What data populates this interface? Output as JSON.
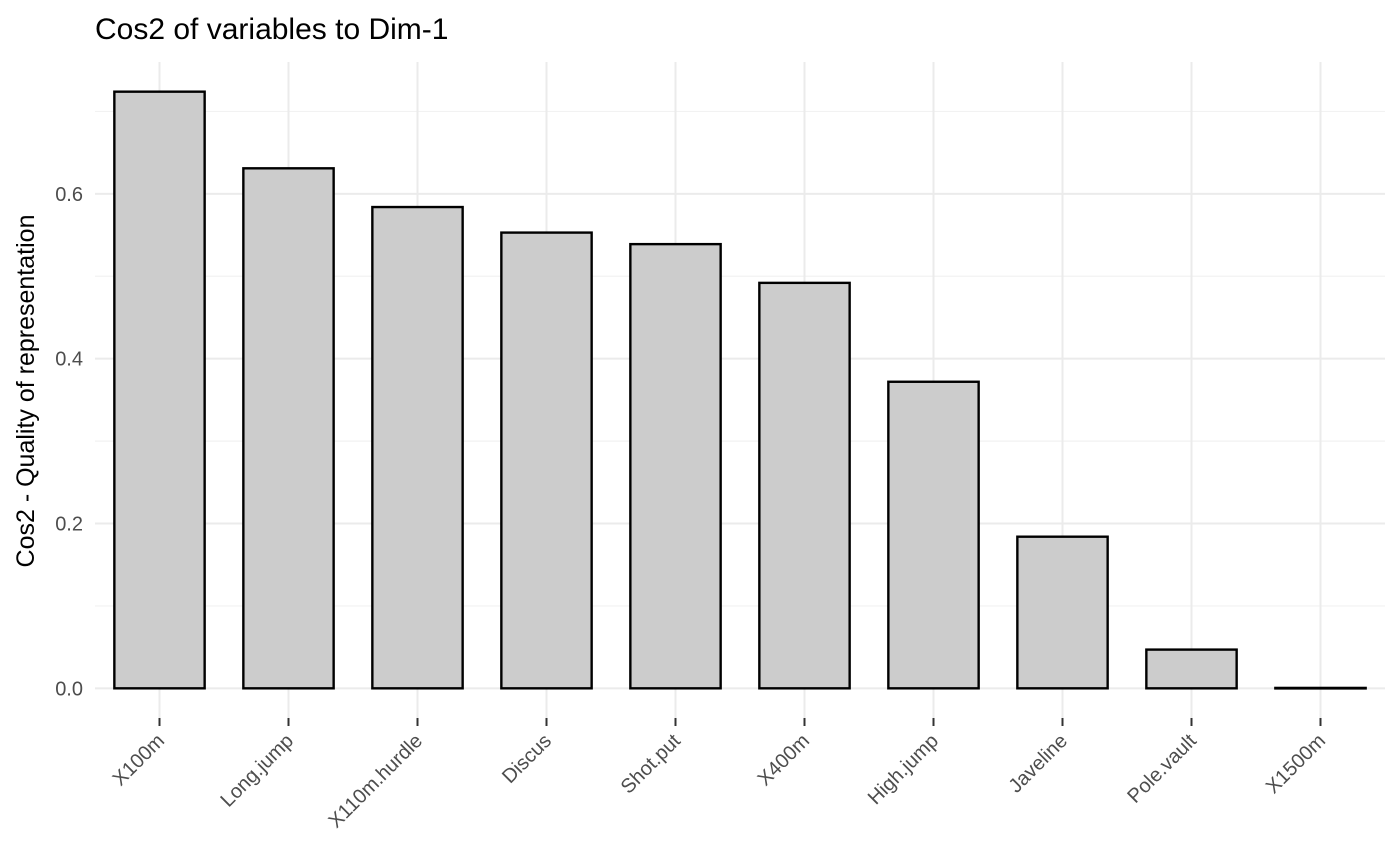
{
  "chart_data": {
    "type": "bar",
    "title": "Cos2 of variables to Dim-1",
    "xlabel": "",
    "ylabel": "Cos2 - Quality of representation",
    "categories": [
      "X100m",
      "Long.jump",
      "X110m.hurdle",
      "Discus",
      "Shot.put",
      "X400m",
      "High.jump",
      "Javeline",
      "Pole.vault",
      "X1500m"
    ],
    "values": [
      0.724,
      0.631,
      0.584,
      0.553,
      0.539,
      0.492,
      0.372,
      0.184,
      0.047,
      0.0005
    ],
    "yticks": [
      0.0,
      0.2,
      0.4,
      0.6
    ],
    "ytick_labels": [
      "0.0",
      "0.2",
      "0.4",
      "0.6"
    ],
    "ylim": [
      -0.036,
      0.76
    ],
    "bar_fill": "#cccccc",
    "bar_outline": "#000000",
    "grid": true,
    "legend": "none"
  }
}
